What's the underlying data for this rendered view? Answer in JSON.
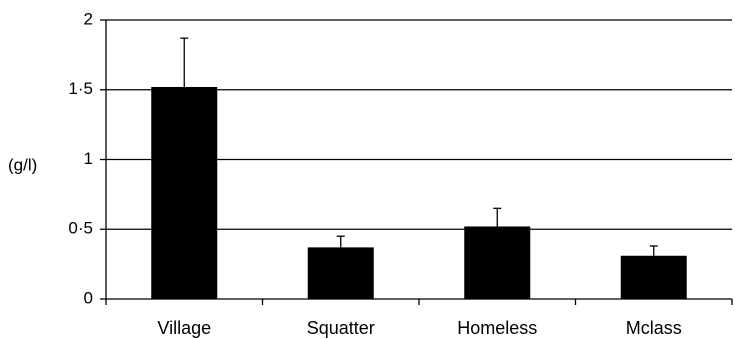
{
  "chart_data": {
    "type": "bar",
    "ylabel": "(g/l)",
    "xlabel": "",
    "ylim": [
      0,
      2
    ],
    "yticks": [
      0,
      0.5,
      1,
      1.5,
      2
    ],
    "ytick_labels": [
      "0",
      "0·5",
      "1",
      "1·5",
      "2"
    ],
    "categories": [
      "Village",
      "Squatter",
      "Homeless",
      "Mclass"
    ],
    "values": [
      1.52,
      0.37,
      0.52,
      0.31
    ],
    "error_upper": [
      1.87,
      0.45,
      0.65,
      0.38
    ],
    "bar_color": "#000000",
    "grid": true,
    "legend": false
  }
}
